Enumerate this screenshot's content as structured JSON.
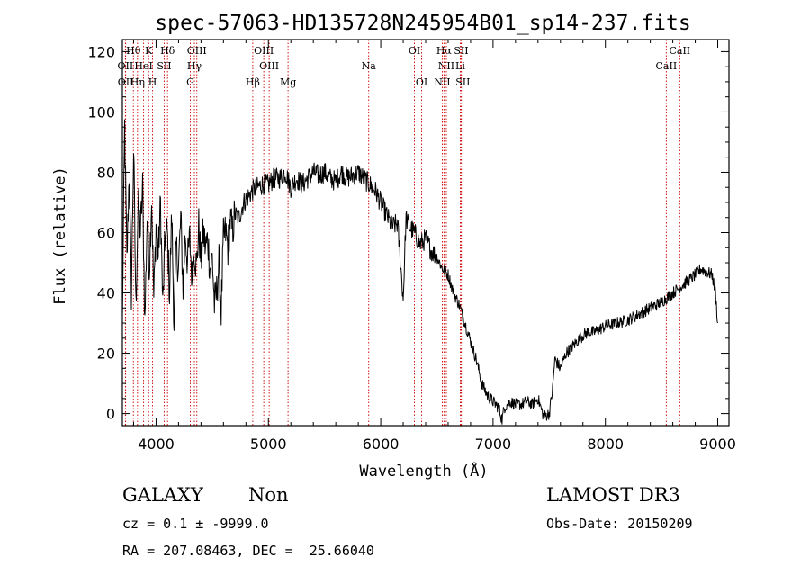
{
  "chart_data": {
    "type": "line",
    "title": "spec-57063-HD135728N245954B01_sp14-237.fits",
    "xlabel": "Wavelength (Å)",
    "ylabel": "Flux (relative)",
    "xlim": [
      3700,
      9100
    ],
    "ylim": [
      -4,
      124
    ],
    "xticks": [
      4000,
      5000,
      6000,
      7000,
      8000,
      9000
    ],
    "yticks": [
      0,
      20,
      40,
      60,
      80,
      100,
      120
    ],
    "series": [
      {
        "name": "flux",
        "x": [
          3700,
          3720,
          3740,
          3760,
          3780,
          3800,
          3820,
          3840,
          3860,
          3880,
          3900,
          3920,
          3940,
          3960,
          3980,
          4000,
          4020,
          4040,
          4060,
          4080,
          4100,
          4120,
          4140,
          4160,
          4180,
          4200,
          4220,
          4240,
          4260,
          4280,
          4300,
          4320,
          4340,
          4360,
          4380,
          4400,
          4420,
          4440,
          4460,
          4480,
          4500,
          4520,
          4540,
          4560,
          4580,
          4600,
          4620,
          4640,
          4660,
          4680,
          4700,
          4740,
          4780,
          4820,
          4860,
          4900,
          4950,
          5000,
          5050,
          5100,
          5150,
          5200,
          5250,
          5300,
          5350,
          5400,
          5450,
          5500,
          5550,
          5600,
          5650,
          5700,
          5750,
          5800,
          5850,
          5900,
          5950,
          6000,
          6050,
          6100,
          6150,
          6200,
          6225,
          6250,
          6300,
          6350,
          6400,
          6450,
          6500,
          6550,
          6600,
          6650,
          6700,
          6750,
          6800,
          6850,
          6900,
          6950,
          7000,
          7050,
          7080,
          7100,
          7150,
          7200,
          7250,
          7300,
          7350,
          7400,
          7450,
          7500,
          7530,
          7550,
          7600,
          7650,
          7700,
          7750,
          7800,
          7850,
          7900,
          7950,
          8000,
          8100,
          8200,
          8300,
          8400,
          8500,
          8600,
          8700,
          8800,
          8850,
          8900,
          8950,
          8980,
          9000
        ],
        "values": [
          30,
          95,
          50,
          80,
          40,
          88,
          35,
          70,
          60,
          75,
          30,
          65,
          48,
          72,
          38,
          62,
          52,
          70,
          35,
          58,
          60,
          40,
          66,
          30,
          55,
          48,
          65,
          42,
          60,
          50,
          58,
          45,
          55,
          48,
          62,
          50,
          60,
          55,
          58,
          48,
          52,
          36,
          40,
          50,
          34,
          58,
          60,
          55,
          64,
          60,
          66,
          65,
          70,
          72,
          74,
          75,
          76,
          76,
          78,
          78,
          80,
          75,
          78,
          76,
          78,
          80,
          79,
          80,
          78,
          77,
          80,
          78,
          79,
          80,
          78,
          76,
          74,
          70,
          66,
          62,
          63,
          38,
          65,
          62,
          60,
          56,
          58,
          54,
          52,
          48,
          46,
          40,
          36,
          30,
          24,
          18,
          10,
          6,
          4,
          2,
          -2,
          2,
          4,
          3,
          3,
          4,
          3,
          5,
          -1,
          0,
          8,
          18,
          15,
          20,
          22,
          24,
          26,
          27,
          27,
          28,
          29,
          30,
          31,
          33,
          35,
          37,
          40,
          43,
          46,
          48,
          47,
          46,
          40,
          30
        ]
      }
    ],
    "spectral_lines": [
      {
        "name": "OII",
        "wavelength": 3727,
        "row": 2
      },
      {
        "name": "OII",
        "wavelength": 3729,
        "row": 3
      },
      {
        "name": "Hθ",
        "wavelength": 3798,
        "row": 1
      },
      {
        "name": "HeI",
        "wavelength": 3889,
        "row": 2
      },
      {
        "name": "Hη",
        "wavelength": 3835,
        "row": 3
      },
      {
        "name": "K",
        "wavelength": 3934,
        "row": 1
      },
      {
        "name": "SII",
        "wavelength": 4072,
        "row": 2
      },
      {
        "name": "H",
        "wavelength": 3969,
        "row": 3
      },
      {
        "name": "Hδ",
        "wavelength": 4102,
        "row": 1
      },
      {
        "name": "OIII",
        "wavelength": 4363,
        "row": 1
      },
      {
        "name": "Hγ",
        "wavelength": 4341,
        "row": 2
      },
      {
        "name": "G",
        "wavelength": 4305,
        "row": 3
      },
      {
        "name": "OIII",
        "wavelength": 4959,
        "row": 1
      },
      {
        "name": "OIII",
        "wavelength": 5007,
        "row": 2
      },
      {
        "name": "Hβ",
        "wavelength": 4861,
        "row": 3
      },
      {
        "name": "Mg",
        "wavelength": 5175,
        "row": 3
      },
      {
        "name": "Na",
        "wavelength": 5893,
        "row": 2
      },
      {
        "name": "OI",
        "wavelength": 6300,
        "row": 1
      },
      {
        "name": "OI",
        "wavelength": 6364,
        "row": 3
      },
      {
        "name": "Hα",
        "wavelength": 6563,
        "row": 1
      },
      {
        "name": "SII",
        "wavelength": 6716,
        "row": 1
      },
      {
        "name": "NII",
        "wavelength": 6584,
        "row": 2
      },
      {
        "name": "Li",
        "wavelength": 6708,
        "row": 2
      },
      {
        "name": "NII",
        "wavelength": 6548,
        "row": 3
      },
      {
        "name": "SII",
        "wavelength": 6731,
        "row": 3
      },
      {
        "name": "CaII",
        "wavelength": 8662,
        "row": 1
      },
      {
        "name": "CaII",
        "wavelength": 8542,
        "row": 2
      }
    ],
    "line_color": "#000000",
    "marker_color": "#cc0000"
  },
  "info": {
    "class": "GALAXY",
    "subclass": "Non",
    "survey": "LAMOST DR3",
    "cz": "cz = 0.1 ± -9999.0",
    "obs_date": "Obs-Date: 20150209",
    "radec": "RA = 207.08463, DEC =  25.66040"
  }
}
